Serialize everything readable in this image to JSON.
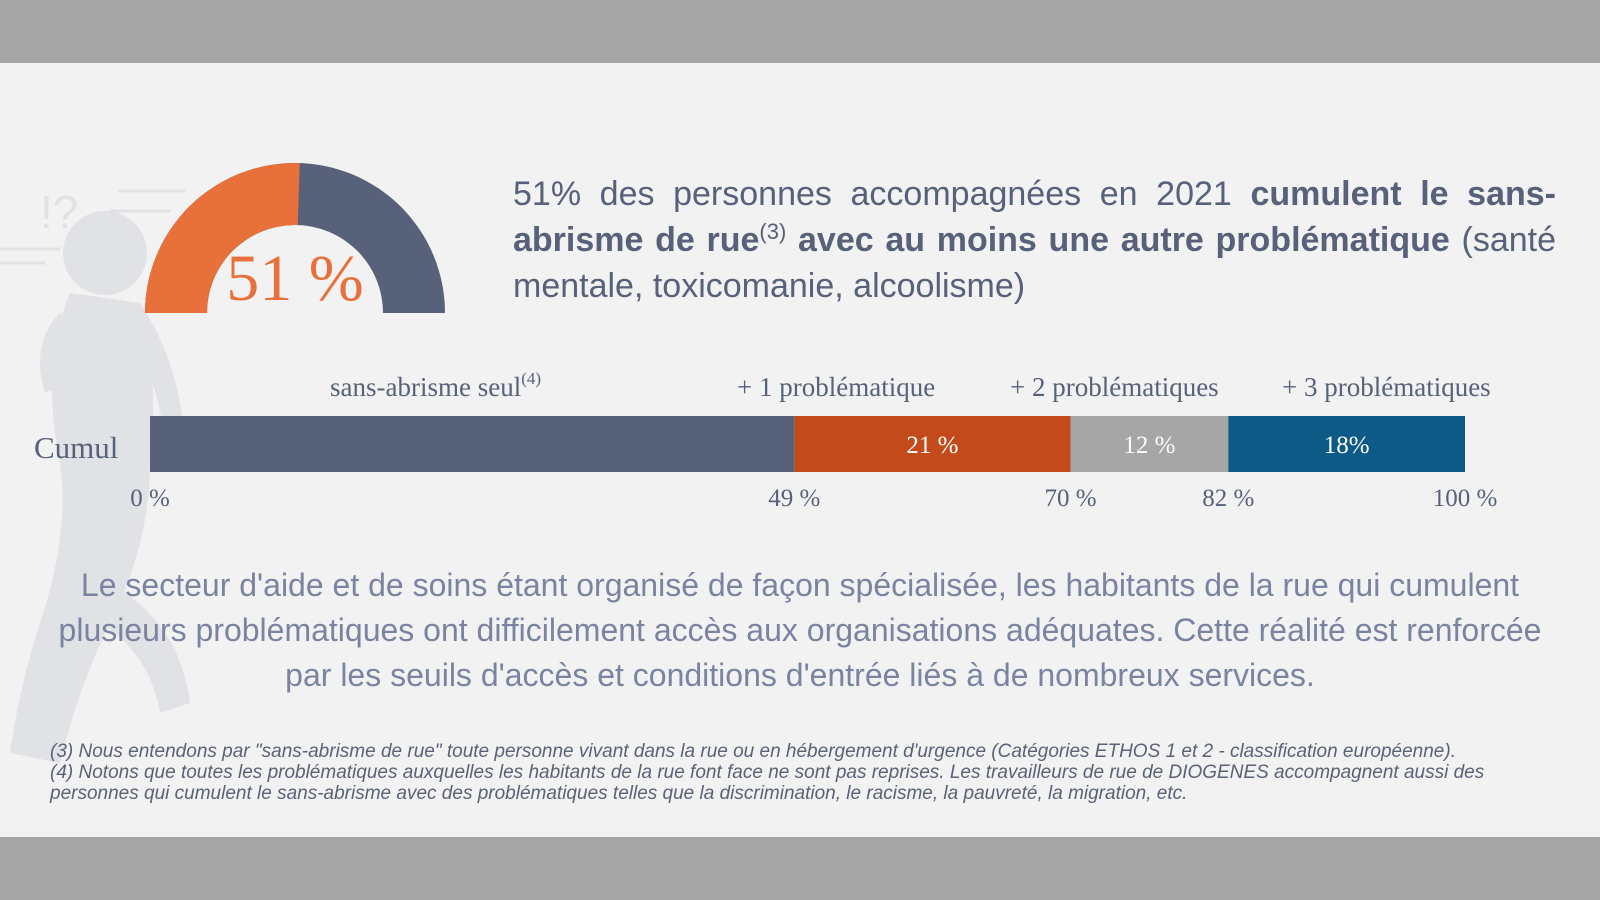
{
  "colors": {
    "panel_bg": "#f2f2f2",
    "outer_bg": "#a5a5a5",
    "slate": "#57617a",
    "orange_gauge": "#e8703a",
    "orange_bar": "#c24a1b",
    "gray_bar": "#a6a6a6",
    "blue_bar": "#0e5a86"
  },
  "gauge": {
    "value_label": "51 %",
    "fraction": 0.51
  },
  "headline": {
    "part1": "51% des personnes accompagnées en 2021 ",
    "bold1": "cumulent le sans-abrisme de rue",
    "sup": "(3)",
    "bold2": " avec au moins une autre problématique",
    "part2": " (santé mentale, toxicomanie, alcoolisme)"
  },
  "chart_data": {
    "type": "bar",
    "orientation": "horizontal-stacked",
    "categories": [
      "Cumul"
    ],
    "series": [
      {
        "name": "sans-abrisme seul",
        "note": "(4)",
        "values": [
          49
        ],
        "data_label": "",
        "color": "#57617a"
      },
      {
        "name": "+ 1 problématique",
        "values": [
          21
        ],
        "data_label": "21 %",
        "color": "#c24a1b"
      },
      {
        "name": "+ 2 problématiques",
        "values": [
          12
        ],
        "data_label": "12 %",
        "color": "#a6a6a6"
      },
      {
        "name": "+ 3 problématiques",
        "values": [
          18
        ],
        "data_label": "18%",
        "color": "#0e5a86"
      }
    ],
    "xlim": [
      0,
      100
    ],
    "ticks": [
      {
        "value": 0,
        "label": "0 %"
      },
      {
        "value": 49,
        "label": "49 %"
      },
      {
        "value": 70,
        "label": "70 %"
      },
      {
        "value": 82,
        "label": "82 %"
      },
      {
        "value": 100,
        "label": "100 %"
      }
    ],
    "grid": false
  },
  "body_text": "Le secteur d'aide et de soins étant organisé de façon spécialisée, les habitants de la rue qui cumulent plusieurs problématiques ont difficilement accès aux organisations adéquates. Cette réalité est renforcée par les seuils d'accès et conditions d'entrée liés à de nombreux services.",
  "footnotes": [
    "(3) Nous entendons par \"sans-abrisme de rue\" toute personne vivant dans la rue ou en hébergement d'urgence (Catégories ETHOS 1 et 2 - classification européenne).",
    "(4) Notons que toutes les problématiques auxquelles les habitants de la rue font face ne sont pas reprises. Les travailleurs de rue de DIOGENES accompagnent aussi des personnes qui cumulent le sans-abrisme avec des problématiques telles que la discrimination, le racisme, la pauvreté, la migration, etc."
  ]
}
